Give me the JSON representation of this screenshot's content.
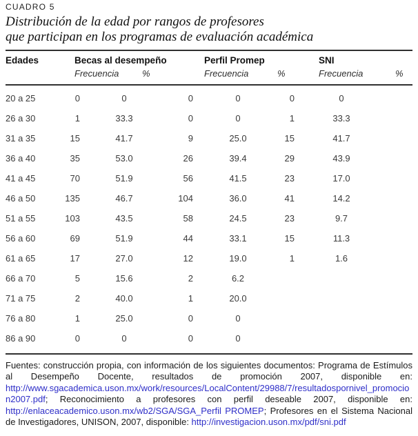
{
  "colors": {
    "link_blue": "#2e2ec8"
  },
  "header": {
    "kicker": "CUADRO 5",
    "title_lines": [
      "Distribución de la edad por rangos de profesores",
      "que participan en los programas de evaluación académica"
    ]
  },
  "table": {
    "edades_header": "Edades",
    "groups": [
      {
        "label": "Becas al desempeño",
        "freq_label": "Frecuencia",
        "pct_label": "%"
      },
      {
        "label": "Perfil Promep",
        "freq_label": "Frecuencia",
        "pct_label": "%"
      },
      {
        "label": "SNI",
        "freq_label": "Frecuencia",
        "pct_label": "%"
      }
    ],
    "rows": [
      {
        "edad": "20 a 25",
        "values": [
          "0",
          "0",
          "0",
          "0",
          "0",
          "0"
        ]
      },
      {
        "edad": "26 a 30",
        "values": [
          "1",
          "33.3",
          "0",
          "0",
          "1",
          "33.3"
        ]
      },
      {
        "edad": "31 a 35",
        "values": [
          "15",
          "41.7",
          "9",
          "25.0",
          "15",
          "41.7"
        ]
      },
      {
        "edad": "36 a 40",
        "values": [
          "35",
          "53.0",
          "26",
          "39.4",
          "29",
          "43.9"
        ]
      },
      {
        "edad": "41 a 45",
        "values": [
          "70",
          "51.9",
          "56",
          "41.5",
          "23",
          "17.0"
        ]
      },
      {
        "edad": "46 a 50",
        "values": [
          "135",
          "46.7",
          "104",
          "36.0",
          "41",
          "14.2"
        ]
      },
      {
        "edad": "51 a 55",
        "values": [
          "103",
          "43.5",
          "58",
          "24.5",
          "23",
          "9.7"
        ]
      },
      {
        "edad": "56 a 60",
        "values": [
          "69",
          "51.9",
          "44",
          "33.1",
          "15",
          "11.3"
        ]
      },
      {
        "edad": "61 a 65",
        "values": [
          "17",
          "27.0",
          "12",
          "19.0",
          "1",
          "1.6"
        ]
      },
      {
        "edad": "66 a 70",
        "values": [
          "5",
          "15.6",
          "2",
          "6.2",
          "",
          ""
        ]
      },
      {
        "edad": "71 a 75",
        "values": [
          "2",
          "40.0",
          "1",
          "20.0",
          "",
          ""
        ]
      },
      {
        "edad": "76 a 80",
        "values": [
          "1",
          "25.0",
          "0",
          "0",
          "",
          ""
        ]
      },
      {
        "edad": "86 a 90",
        "values": [
          "0",
          "0",
          "0",
          "0",
          "",
          ""
        ]
      }
    ]
  },
  "footer": {
    "segments": [
      {
        "link": false,
        "text": "Fuentes: construcción propia, con información de los siguientes documentos: Programa de Estímulos al Desempeño Docente, resultados de promoción 2007, disponible en: "
      },
      {
        "link": true,
        "text": "http://www.sgacademica.uson.mx/work/resources/LocalContent/29988/7/resultadospornivel_promocion2007.pdf"
      },
      {
        "link": false,
        "text": "; Reconocimiento a profesores con perfil deseable 2007, disponible en: "
      },
      {
        "link": true,
        "text": "http://enlaceacademico.uson.mx/wb2/SGA/SGA_Perfil PROMEP"
      },
      {
        "link": false,
        "text": "; Profesores en el Sistema Nacional de Investigadores, UNISON, 2007, disponible: "
      },
      {
        "link": true,
        "text": "http://investigacion.uson.mx/pdf/sni.pdf"
      }
    ]
  }
}
